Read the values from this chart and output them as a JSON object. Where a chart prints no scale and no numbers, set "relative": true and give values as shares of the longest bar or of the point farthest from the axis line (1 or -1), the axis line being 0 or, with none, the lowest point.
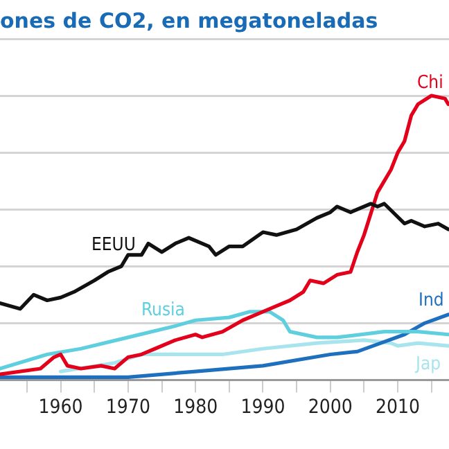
{
  "chart_data": {
    "type": "line",
    "title": "ones de CO2, en megatoneladas",
    "relative": true,
    "grid": "y",
    "marker": "none",
    "line_style": "solid",
    "xlim": [
      1951,
      2017.6
    ],
    "xticks": [
      {
        "value": 1955,
        "label": null
      },
      1960,
      {
        "value": 1965,
        "label": null
      },
      1970,
      {
        "value": 1975,
        "label": null
      },
      1980,
      {
        "value": 1985,
        "label": null
      },
      1990,
      {
        "value": 1995,
        "label": null
      },
      2000,
      {
        "value": 2005,
        "label": null
      },
      2010,
      {
        "value": 2015,
        "label": null
      }
    ],
    "series": [
      {
        "name": "EEUU",
        "color": "#111111",
        "x": [
          1951,
          1954,
          1956,
          1958,
          1960,
          1962,
          1965,
          1967,
          1969,
          1970,
          1972,
          1973,
          1975,
          1977,
          1979,
          1982,
          1983,
          1985,
          1987,
          1990,
          1992,
          1995,
          1998,
          2000,
          2001,
          2003,
          2006,
          2007,
          2008,
          2011,
          2012,
          2014,
          2016,
          2017.5
        ],
        "values": [
          0.27,
          0.25,
          0.3,
          0.28,
          0.29,
          0.31,
          0.35,
          0.38,
          0.4,
          0.44,
          0.44,
          0.48,
          0.45,
          0.48,
          0.5,
          0.47,
          0.44,
          0.47,
          0.47,
          0.52,
          0.51,
          0.53,
          0.57,
          0.59,
          0.61,
          0.59,
          0.62,
          0.61,
          0.62,
          0.55,
          0.56,
          0.54,
          0.55,
          0.53
        ]
      },
      {
        "name": "Chi",
        "color": "#e3001b",
        "x": [
          1951,
          1957,
          1959,
          1960,
          1961,
          1963,
          1966,
          1968,
          1970,
          1972,
          1974,
          1977,
          1980,
          1981,
          1984,
          1987,
          1990,
          1992,
          1994,
          1996,
          1997,
          1999,
          2001,
          2003,
          2004,
          2005,
          2007,
          2009,
          2010,
          2011,
          2012,
          2013,
          2015,
          2017,
          2017.5
        ],
        "values": [
          0.02,
          0.04,
          0.08,
          0.09,
          0.05,
          0.04,
          0.05,
          0.04,
          0.08,
          0.09,
          0.11,
          0.14,
          0.16,
          0.15,
          0.17,
          0.21,
          0.24,
          0.26,
          0.28,
          0.31,
          0.35,
          0.34,
          0.37,
          0.38,
          0.45,
          0.51,
          0.66,
          0.74,
          0.8,
          0.84,
          0.93,
          0.97,
          1,
          0.99,
          0.97
        ]
      },
      {
        "name": "Rusia",
        "color": "#5fcfe0",
        "x": [
          1951,
          1958,
          1963,
          1970,
          1977,
          1980,
          1985,
          1988,
          1991,
          1993,
          1994,
          1998,
          2001,
          2008,
          2013,
          2017.5
        ],
        "values": [
          0.04,
          0.09,
          0.11,
          0.15,
          0.19,
          0.21,
          0.22,
          0.24,
          0.24,
          0.21,
          0.17,
          0.15,
          0.15,
          0.17,
          0.17,
          0.16
        ]
      },
      {
        "name": "Ind",
        "color": "#1f6fbf",
        "x": [
          1951,
          1970,
          1980,
          1990,
          2000,
          2004,
          2011,
          2014,
          2017.5
        ],
        "values": [
          0.01,
          0.01,
          0.03,
          0.05,
          0.09,
          0.1,
          0.16,
          0.2,
          0.23
        ]
      },
      {
        "name": "Jap",
        "color": "#a8e4ee",
        "x": [
          1960,
          1968,
          1972,
          1980,
          1984,
          1990,
          1998,
          2005,
          2009,
          2010,
          2013,
          2017.5
        ],
        "values": [
          0.03,
          0.06,
          0.09,
          0.09,
          0.09,
          0.11,
          0.13,
          0.14,
          0.13,
          0.12,
          0.13,
          0.12
        ]
      }
    ]
  }
}
